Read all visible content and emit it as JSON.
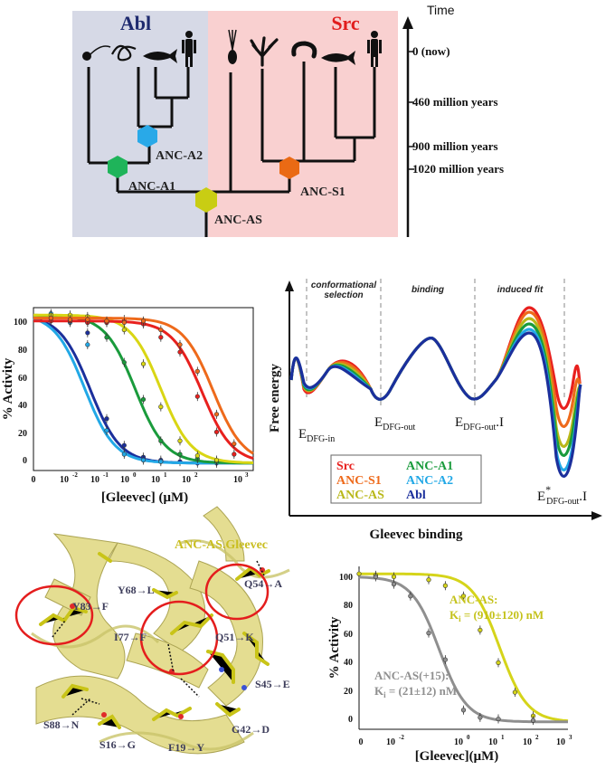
{
  "panel_a": {
    "abl_title": "Abl",
    "src_title": "Src",
    "time_label": "Time",
    "time_ticks": [
      "0  (now)",
      "460 million years",
      "900 million years",
      "1020 million years"
    ],
    "nodes": [
      "ANC-A2",
      "ANC-A1",
      "ANC-AS",
      "ANC-S1"
    ],
    "colors": {
      "abl_bg": "#d6d9e6",
      "src_bg": "#f9d0d0",
      "anc_a2": "#29a9e8",
      "anc_a1": "#1fb45a",
      "anc_as": "#c9cd13",
      "anc_s1": "#ea6a14"
    }
  },
  "panel_b": {
    "ylabel": "% Activity",
    "xlabel": "[Gleevec] (μM)",
    "y_ticks": [
      "0",
      "20",
      "40",
      "60",
      "80",
      "100"
    ],
    "x_ticks": [
      "0",
      "10",
      "-2",
      "10",
      "-1",
      "10",
      "0",
      "10",
      "1",
      "10",
      "2",
      "10",
      "3"
    ]
  },
  "panel_c": {
    "ylabel": "Free energy",
    "xlabel": "Gleevec binding",
    "regions": [
      "conformational selection",
      "binding",
      "induced fit"
    ],
    "state_labels": {
      "s1_main": "E",
      "s1_sub": "DFG-in",
      "s2_main": "E",
      "s2_sub": "DFG-out",
      "s3_main": "E",
      "s3_sub": "DFG-out",
      "s3_tail": ".I",
      "s4_main": "E",
      "s4_star": "*",
      "s4_sub": "DFG-out",
      "s4_tail": ".I"
    },
    "legend": [
      {
        "name": "Src",
        "color": "#e8201e"
      },
      {
        "name": "ANC-A1",
        "color": "#1a9b3c"
      },
      {
        "name": "ANC-S1",
        "color": "#ee6a1b"
      },
      {
        "name": "ANC-A2",
        "color": "#22a8e6"
      },
      {
        "name": "ANC-AS",
        "color": "#b9b81a"
      },
      {
        "name": "Abl",
        "color": "#1b2f9c"
      }
    ]
  },
  "panel_d": {
    "title": "ANC-AS.Gleevec",
    "mutations": [
      "Y68→L",
      "Q54→A",
      "Y83→F",
      "I77→F",
      "Q51→K",
      "S45→E",
      "S88→N",
      "S16→G",
      "F19→Y",
      "G42→D"
    ]
  },
  "panel_e": {
    "ylabel": "% Activity",
    "xlabel": "[Gleevec](μM)",
    "y_ticks": [
      "0",
      "20",
      "40",
      "60",
      "80",
      "100"
    ],
    "x_ticks": [
      "0",
      "10",
      "-2",
      "10",
      "0",
      "10",
      "1",
      "10",
      "2",
      "10",
      "3"
    ],
    "anc_as_label": "ANC-AS:",
    "anc_as_ki_main": "K",
    "anc_as_ki_sub": "i",
    "anc_as_ki_val": " = (910±120) nM",
    "anc_as15_label": "ANC-AS(+15):",
    "anc_as15_ki_main": "K",
    "anc_as15_ki_sub": "i",
    "anc_as15_ki_val": " = (21±12) nM"
  },
  "chart_data": [
    {
      "type": "scatter",
      "ylabel": "% Activity",
      "xlabel": "[Gleevec] (μM)",
      "ylim": [
        -5,
        105
      ],
      "x_scale": "log",
      "xlim": [
        0.001,
        1000
      ],
      "series": [
        {
          "color": "#1b2f9c",
          "ic50": 0.035,
          "x": [
            0.003,
            0.01,
            0.03,
            0.1,
            0.3,
            1,
            3,
            10,
            30,
            100
          ],
          "y": [
            100,
            97,
            88,
            30,
            12,
            4,
            2,
            1,
            0,
            0
          ]
        },
        {
          "color": "#22a8e6",
          "ic50": 0.025,
          "x": [
            0.003,
            0.01,
            0.03,
            0.1,
            0.3,
            1,
            3
          ],
          "y": [
            101,
            95,
            80,
            22,
            6,
            2,
            1
          ]
        },
        {
          "color": "#1a9b3c",
          "ic50": 0.6,
          "x": [
            0.003,
            0.01,
            0.03,
            0.1,
            0.3,
            1,
            3,
            10,
            30,
            100
          ],
          "y": [
            100,
            97,
            95,
            85,
            68,
            43,
            15,
            6,
            3,
            1
          ]
        },
        {
          "color": "#d9d614",
          "ic50": 3.0,
          "x": [
            0.003,
            0.01,
            0.03,
            0.1,
            0.3,
            1,
            3,
            10,
            30,
            100
          ],
          "y": [
            100,
            100,
            99,
            95,
            90,
            67,
            38,
            15,
            5,
            2
          ]
        },
        {
          "color": "#e8201e",
          "ic50": 40,
          "x": [
            0.003,
            0.01,
            0.03,
            0.1,
            0.3,
            1,
            3,
            10,
            30,
            100,
            300
          ],
          "y": [
            96,
            96,
            95,
            95,
            97,
            94,
            85,
            75,
            45,
            21,
            6
          ]
        },
        {
          "color": "#ee6a1b",
          "ic50": 80,
          "x": [
            0.003,
            0.01,
            0.03,
            0.1,
            0.3,
            1,
            3,
            10,
            30,
            100,
            300
          ],
          "y": [
            98,
            97,
            97,
            96,
            95,
            96,
            90,
            80,
            62,
            33,
            13
          ]
        }
      ]
    },
    {
      "type": "scatter",
      "ylabel": "% Activity",
      "xlabel": "[Gleevec](μM)",
      "ylim": [
        -5,
        105
      ],
      "x_scale": "log",
      "xlim": [
        0.001,
        1000
      ],
      "series": [
        {
          "name": "ANC-AS",
          "color": "#d5d41a",
          "ic50": 11,
          "x": [
            0.001,
            0.003,
            0.01,
            0.1,
            0.3,
            1,
            3,
            10,
            30,
            100
          ],
          "y": [
            100,
            99,
            98,
            96,
            92,
            85,
            62,
            40,
            20,
            4
          ]
        },
        {
          "name": "ANC-AS(+15)",
          "color": "#8f8f8f",
          "ic50": 0.2,
          "x": [
            0.003,
            0.01,
            0.03,
            0.1,
            0.3,
            1,
            3,
            10,
            100
          ],
          "y": [
            98,
            93,
            85,
            60,
            42,
            8,
            3,
            2,
            1
          ]
        }
      ]
    }
  ]
}
